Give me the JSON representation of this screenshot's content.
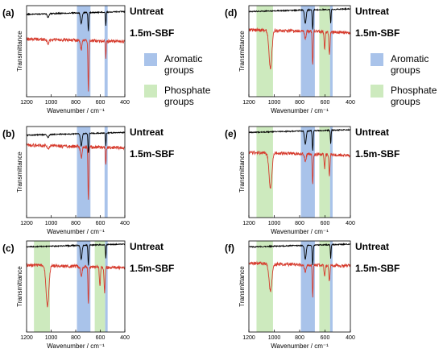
{
  "figure": {
    "legend": [
      {
        "name": "Aromatic groups",
        "lines": [
          "Aromatic",
          "groups"
        ],
        "color": "#a9c3ea"
      },
      {
        "name": "Phosphate groups",
        "lines": [
          "Phosphate",
          "groups"
        ],
        "color": "#cdeabe"
      }
    ]
  },
  "chart_data": [
    {
      "panel": "(a)",
      "type": "line",
      "xlabel": "Wavenumber / cm⁻¹",
      "ylabel": "Transmittance",
      "xlim": [
        1200,
        400
      ],
      "xticks": [
        1200,
        1000,
        800,
        600,
        400
      ],
      "bands": [
        {
          "group": "Aromatic groups",
          "from": 790,
          "to": 680
        },
        {
          "group": "Aromatic groups",
          "from": 565,
          "to": 540
        }
      ],
      "series": [
        {
          "name": "Untreat",
          "color": "#000000",
          "baseline": 0.92,
          "peaks": [
            {
              "x": 1025,
              "depth": 0.04,
              "width": 10
            },
            {
              "x": 755,
              "depth": 0.12,
              "width": 9
            },
            {
              "x": 697,
              "depth": 0.2,
              "width": 5
            },
            {
              "x": 555,
              "depth": 0.15,
              "width": 4
            }
          ]
        },
        {
          "name": "1.5m-SBF",
          "color": "#d63a2c",
          "baseline": 0.62,
          "peaks": [
            {
              "x": 1025,
              "depth": 0.05,
              "width": 10
            },
            {
              "x": 755,
              "depth": 0.1,
              "width": 9
            },
            {
              "x": 697,
              "depth": 0.55,
              "width": 5
            },
            {
              "x": 555,
              "depth": 0.18,
              "width": 4
            }
          ]
        }
      ]
    },
    {
      "panel": "(b)",
      "type": "line",
      "xlabel": "Wavenumber / cm⁻¹",
      "ylabel": "Transmittance",
      "xlim": [
        1200,
        400
      ],
      "xticks": [
        1200,
        1000,
        800,
        600,
        400
      ],
      "bands": [
        {
          "group": "Aromatic groups",
          "from": 790,
          "to": 680
        },
        {
          "group": "Aromatic groups",
          "from": 565,
          "to": 540
        }
      ],
      "series": [
        {
          "name": "Untreat",
          "color": "#000000",
          "baseline": 0.92,
          "peaks": [
            {
              "x": 1025,
              "depth": 0.03,
              "width": 10
            },
            {
              "x": 755,
              "depth": 0.14,
              "width": 9
            },
            {
              "x": 697,
              "depth": 0.22,
              "width": 5
            },
            {
              "x": 555,
              "depth": 0.14,
              "width": 4
            }
          ]
        },
        {
          "name": "1.5m-SBF",
          "color": "#d63a2c",
          "baseline": 0.78,
          "peaks": [
            {
              "x": 1025,
              "depth": 0.04,
              "width": 10
            },
            {
              "x": 755,
              "depth": 0.12,
              "width": 9
            },
            {
              "x": 697,
              "depth": 0.6,
              "width": 5
            },
            {
              "x": 555,
              "depth": 0.2,
              "width": 4
            }
          ]
        }
      ]
    },
    {
      "panel": "(c)",
      "type": "line",
      "xlabel": "Wavenumber / cm⁻¹",
      "ylabel": "Transmittance",
      "xlim": [
        1200,
        400
      ],
      "xticks": [
        1200,
        1000,
        800,
        600,
        400
      ],
      "bands": [
        {
          "group": "Phosphate groups",
          "from": 1140,
          "to": 1010
        },
        {
          "group": "Aromatic groups",
          "from": 790,
          "to": 680
        },
        {
          "group": "Phosphate groups",
          "from": 645,
          "to": 560
        },
        {
          "group": "Aromatic groups",
          "from": 560,
          "to": 540
        }
      ],
      "series": [
        {
          "name": "Untreat",
          "color": "#000000",
          "baseline": 0.95,
          "peaks": [
            {
              "x": 755,
              "depth": 0.15,
              "width": 9
            },
            {
              "x": 697,
              "depth": 0.22,
              "width": 5
            },
            {
              "x": 555,
              "depth": 0.15,
              "width": 4
            }
          ]
        },
        {
          "name": "1.5m-SBF",
          "color": "#d63a2c",
          "baseline": 0.72,
          "peaks": [
            {
              "x": 1030,
              "depth": 0.45,
              "width": 16
            },
            {
              "x": 755,
              "depth": 0.1,
              "width": 9
            },
            {
              "x": 697,
              "depth": 0.4,
              "width": 5
            },
            {
              "x": 603,
              "depth": 0.22,
              "width": 6
            },
            {
              "x": 565,
              "depth": 0.28,
              "width": 6
            }
          ]
        }
      ]
    },
    {
      "panel": "(d)",
      "type": "line",
      "xlabel": "Wavenumber / cm⁻¹",
      "ylabel": "Transmittance",
      "xlim": [
        1200,
        400
      ],
      "xticks": [
        1200,
        1000,
        800,
        600,
        400
      ],
      "bands": [
        {
          "group": "Phosphate groups",
          "from": 1140,
          "to": 1010
        },
        {
          "group": "Aromatic groups",
          "from": 790,
          "to": 680
        },
        {
          "group": "Phosphate groups",
          "from": 645,
          "to": 560
        },
        {
          "group": "Aromatic groups",
          "from": 560,
          "to": 540
        }
      ],
      "series": [
        {
          "name": "Untreat",
          "color": "#000000",
          "baseline": 0.95,
          "peaks": [
            {
              "x": 755,
              "depth": 0.15,
              "width": 9
            },
            {
              "x": 697,
              "depth": 0.22,
              "width": 5
            },
            {
              "x": 555,
              "depth": 0.15,
              "width": 4
            }
          ]
        },
        {
          "name": "1.5m-SBF",
          "color": "#d63a2c",
          "baseline": 0.72,
          "peaks": [
            {
              "x": 1030,
              "depth": 0.42,
              "width": 16
            },
            {
              "x": 755,
              "depth": 0.08,
              "width": 9
            },
            {
              "x": 697,
              "depth": 0.38,
              "width": 5
            },
            {
              "x": 603,
              "depth": 0.18,
              "width": 6
            },
            {
              "x": 565,
              "depth": 0.25,
              "width": 6
            }
          ]
        }
      ]
    },
    {
      "panel": "(e)",
      "type": "line",
      "xlabel": "Wavenumber / cm⁻¹",
      "ylabel": "Transmittance",
      "xlim": [
        1200,
        400
      ],
      "xticks": [
        1200,
        1000,
        800,
        600,
        400
      ],
      "bands": [
        {
          "group": "Phosphate groups",
          "from": 1140,
          "to": 1010
        },
        {
          "group": "Aromatic groups",
          "from": 790,
          "to": 680
        },
        {
          "group": "Phosphate groups",
          "from": 645,
          "to": 560
        },
        {
          "group": "Aromatic groups",
          "from": 560,
          "to": 540
        }
      ],
      "series": [
        {
          "name": "Untreat",
          "color": "#000000",
          "baseline": 0.95,
          "peaks": [
            {
              "x": 755,
              "depth": 0.15,
              "width": 9
            },
            {
              "x": 697,
              "depth": 0.22,
              "width": 5
            },
            {
              "x": 555,
              "depth": 0.15,
              "width": 4
            }
          ]
        },
        {
          "name": "1.5m-SBF",
          "color": "#d63a2c",
          "baseline": 0.7,
          "peaks": [
            {
              "x": 1030,
              "depth": 0.38,
              "width": 16
            },
            {
              "x": 755,
              "depth": 0.08,
              "width": 9
            },
            {
              "x": 697,
              "depth": 0.32,
              "width": 5
            },
            {
              "x": 603,
              "depth": 0.15,
              "width": 6
            },
            {
              "x": 565,
              "depth": 0.22,
              "width": 6
            }
          ]
        }
      ]
    },
    {
      "panel": "(f)",
      "type": "line",
      "xlabel": "Wavenumber / cm⁻¹",
      "ylabel": "Transmittance",
      "xlim": [
        1200,
        400
      ],
      "xticks": [
        1200,
        1000,
        800,
        600,
        400
      ],
      "bands": [
        {
          "group": "Phosphate groups",
          "from": 1140,
          "to": 1010
        },
        {
          "group": "Aromatic groups",
          "from": 790,
          "to": 680
        },
        {
          "group": "Phosphate groups",
          "from": 645,
          "to": 560
        },
        {
          "group": "Aromatic groups",
          "from": 560,
          "to": 540
        }
      ],
      "series": [
        {
          "name": "Untreat",
          "color": "#000000",
          "baseline": 0.95,
          "peaks": [
            {
              "x": 755,
              "depth": 0.15,
              "width": 9
            },
            {
              "x": 697,
              "depth": 0.22,
              "width": 5
            },
            {
              "x": 555,
              "depth": 0.15,
              "width": 4
            }
          ]
        },
        {
          "name": "1.5m-SBF",
          "color": "#d63a2c",
          "baseline": 0.74,
          "peaks": [
            {
              "x": 1030,
              "depth": 0.3,
              "width": 16
            },
            {
              "x": 755,
              "depth": 0.08,
              "width": 9
            },
            {
              "x": 697,
              "depth": 0.35,
              "width": 5
            },
            {
              "x": 603,
              "depth": 0.12,
              "width": 6
            },
            {
              "x": 565,
              "depth": 0.18,
              "width": 6
            }
          ]
        }
      ]
    }
  ]
}
